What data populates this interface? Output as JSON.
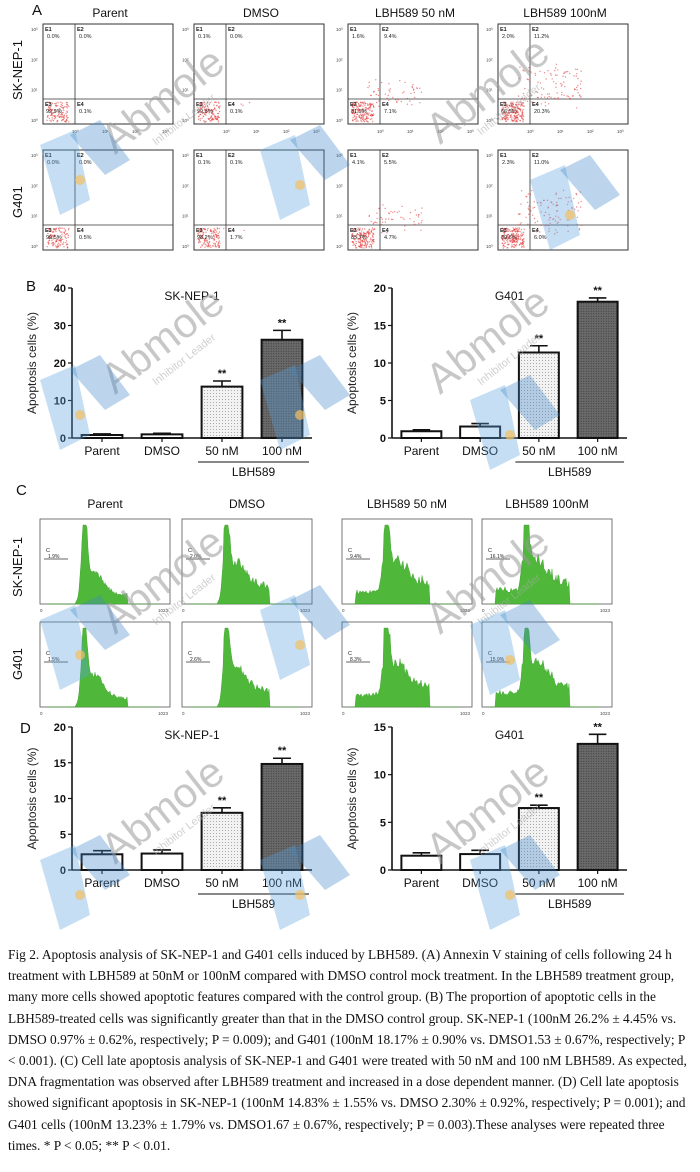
{
  "figure": {
    "panels": {
      "A": {
        "letter": "A",
        "columns": [
          "Parent",
          "DMSO",
          "LBH589 50 nM",
          "LBH589 100nM"
        ],
        "rows": [
          "SK-NEP-1",
          "G401"
        ],
        "quadrant_labels": [
          "E1",
          "E2",
          "E3",
          "E4"
        ],
        "axis_ticks": [
          "10⁰",
          "10¹",
          "10²",
          "10³"
        ],
        "plots": [
          {
            "row": "SK-NEP-1",
            "col": "Parent",
            "E1": "0.0%",
            "E2": "0.0%",
            "E3": "99.9%",
            "E4": "0.1%"
          },
          {
            "row": "SK-NEP-1",
            "col": "DMSO",
            "E1": "0.1%",
            "E2": "0.0%",
            "E3": "99.8%",
            "E4": "0.1%"
          },
          {
            "row": "SK-NEP-1",
            "col": "LBH589 50 nM",
            "E1": "1.6%",
            "E2": "9.4%",
            "E3": "81.9%",
            "E4": "7.1%"
          },
          {
            "row": "SK-NEP-1",
            "col": "LBH589 100nM",
            "E1": "2.0%",
            "E2": "11.2%",
            "E3": "66.5%",
            "E4": "20.3%"
          },
          {
            "row": "G401",
            "col": "Parent",
            "E1": "0.0%",
            "E2": "0.0%",
            "E3": "99.5%",
            "E4": "0.5%"
          },
          {
            "row": "G401",
            "col": "DMSO",
            "E1": "0.1%",
            "E2": "0.1%",
            "E3": "98.2%",
            "E4": "1.7%"
          },
          {
            "row": "G401",
            "col": "LBH589 50 nM",
            "E1": "4.1%",
            "E2": "5.5%",
            "E3": "85.7%",
            "E4": "4.7%"
          },
          {
            "row": "G401",
            "col": "LBH589 100nM",
            "E1": "2.3%",
            "E2": "11.0%",
            "E3": "80.6%",
            "E4": "6.0%"
          }
        ]
      },
      "C": {
        "letter": "C",
        "columns": [
          "Parent",
          "DMSO",
          "LBH589 50 nM",
          "LBH589 100nM"
        ],
        "rows": [
          "SK-NEP-1",
          "G401"
        ],
        "gate_label": "C",
        "x_max_tick": "1023",
        "x_min_tick": "0",
        "plots": [
          {
            "row": "SK-NEP-1",
            "col": "Parent",
            "pct": "1.9%"
          },
          {
            "row": "SK-NEP-1",
            "col": "DMSO",
            "pct": "2.0%"
          },
          {
            "row": "SK-NEP-1",
            "col": "LBH589 50 nM",
            "pct": "9.4%"
          },
          {
            "row": "SK-NEP-1",
            "col": "LBH589 100nM",
            "pct": "16.1%"
          },
          {
            "row": "G401",
            "col": "Parent",
            "pct": "1.5%"
          },
          {
            "row": "G401",
            "col": "DMSO",
            "pct": "2.6%"
          },
          {
            "row": "G401",
            "col": "LBH589 50 nM",
            "pct": "8.3%"
          },
          {
            "row": "G401",
            "col": "LBH589 100nM",
            "pct": "15.9%"
          }
        ]
      },
      "B": {
        "letter": "B"
      },
      "D": {
        "letter": "D"
      }
    },
    "watermark": {
      "brand": "Abmole",
      "tagline": "Inhibitor Leader"
    },
    "caption": "Fig 2. Apoptosis analysis of SK-NEP-1 and G401 cells induced by LBH589. (A) Annexin V staining of cells following 24 h treatment with LBH589 at 50nM or 100nM compared with DMSO control mock treatment. In the LBH589 treatment group, many more cells showed apoptotic features compared with the control group. (B) The proportion of apoptotic cells in the LBH589-treated cells was significantly greater than that in the DMSO control group. SK-NEP-1 (100nM 26.2% ± 4.45% vs. DMSO 0.97% ± 0.62%, respectively; P = 0.009); and G401 (100nM 18.17% ± 0.90% vs. DMSO1.53 ± 0.67%, respectively; P < 0.001). (C) Cell late apoptosis analysis of SK-NEP-1 and G401 were treated with 50 nM and 100 nM LBH589. As expected, DNA fragmentation was observed after LBH589 treatment and increased in a dose dependent manner. (D) Cell late apoptosis showed significant apoptosis in SK-NEP-1 (100nM 14.83% ± 1.55% vs. DMSO 2.30% ± 0.92%, respectively; P = 0.001); and G401 cells (100nM 13.23% ± 1.79% vs. DMSO1.67 ± 0.67%, respectively; P = 0.003).These analyses were repeated three times. * P < 0.05; ** P < 0.01."
  },
  "chart_data": [
    {
      "id": "B-SK-NEP-1",
      "type": "bar",
      "title": "SK-NEP-1",
      "ylabel": "Apoptosis cells (%)",
      "xlabel": "",
      "group_label": "LBH589",
      "categories": [
        "Parent",
        "DMSO",
        "50 nM",
        "100  nM"
      ],
      "values": [
        0.8,
        0.97,
        13.7,
        26.2
      ],
      "errors": [
        0.3,
        0.3,
        1.5,
        2.5
      ],
      "significance": [
        "",
        "",
        "**",
        "**"
      ],
      "ylim": [
        0,
        40
      ],
      "yticks": [
        0,
        10,
        20,
        30,
        40
      ],
      "fills": [
        "white",
        "white",
        "light-dots",
        "dark-dots"
      ],
      "grid": false
    },
    {
      "id": "B-G401",
      "type": "bar",
      "title": "G401",
      "ylabel": "Apoptosis cells (%)",
      "xlabel": "",
      "group_label": "LBH589",
      "categories": [
        "Parent",
        "DMSO",
        "50 nM",
        "100  nM"
      ],
      "values": [
        0.9,
        1.53,
        11.4,
        18.17
      ],
      "errors": [
        0.2,
        0.4,
        0.9,
        0.5
      ],
      "significance": [
        "",
        "",
        "**",
        "**"
      ],
      "ylim": [
        0,
        20
      ],
      "yticks": [
        0,
        5,
        10,
        15,
        20
      ],
      "fills": [
        "white",
        "white",
        "light-dots",
        "dark-dots"
      ],
      "grid": false
    },
    {
      "id": "D-SK-NEP-1",
      "type": "bar",
      "title": "SK-NEP-1",
      "ylabel": "Apoptosis cells (%)",
      "xlabel": "",
      "group_label": "LBH589",
      "categories": [
        "Parent",
        "DMSO",
        "50 nM",
        "100  nM"
      ],
      "values": [
        2.2,
        2.3,
        8.0,
        14.83
      ],
      "errors": [
        0.5,
        0.5,
        0.7,
        0.8
      ],
      "significance": [
        "",
        "",
        "**",
        "**"
      ],
      "ylim": [
        0,
        20
      ],
      "yticks": [
        0,
        5,
        10,
        15,
        20
      ],
      "fills": [
        "white",
        "white",
        "light-dots",
        "dark-dots"
      ],
      "grid": false
    },
    {
      "id": "D-G401",
      "type": "bar",
      "title": "G401",
      "ylabel": "Apoptosis cells (%)",
      "xlabel": "",
      "group_label": "LBH589",
      "categories": [
        "Parent",
        "DMSO",
        "50 nM",
        "100  nM"
      ],
      "values": [
        1.5,
        1.67,
        6.5,
        13.23
      ],
      "errors": [
        0.3,
        0.4,
        0.3,
        1.0
      ],
      "significance": [
        "",
        "",
        "**",
        "**"
      ],
      "ylim": [
        0,
        15
      ],
      "yticks": [
        0,
        5,
        10,
        15
      ],
      "fills": [
        "white",
        "white",
        "light-dots",
        "dark-dots"
      ],
      "grid": false
    }
  ]
}
